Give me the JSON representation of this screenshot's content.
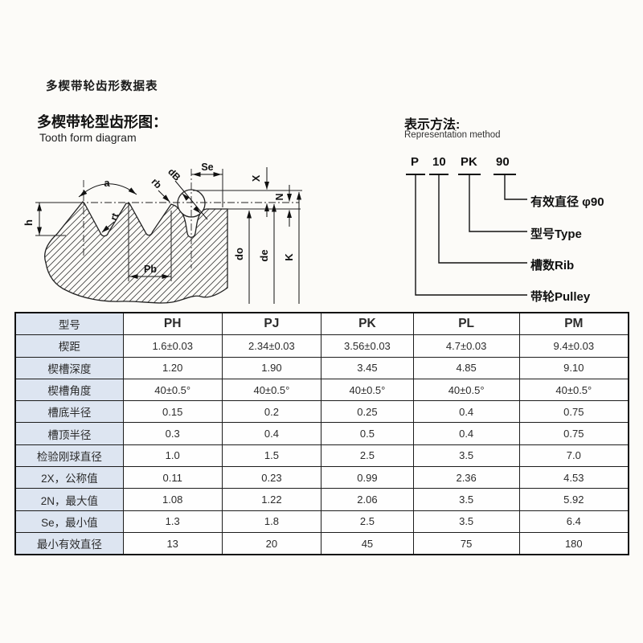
{
  "page_title": "多楔带轮齿形数据表",
  "diagram": {
    "title": "多楔带轮型齿形图：",
    "subtitle": "Tooth form diagram",
    "labels": {
      "a": "a",
      "h": "h",
      "rt": "rt",
      "rb": "rb",
      "db": "dB",
      "se": "Se",
      "x": "X",
      "n": "N",
      "pb": "Pb",
      "do_": "do",
      "de": "de",
      "k": "K"
    }
  },
  "representation": {
    "title": "表示方法:",
    "subtitle": "Representation method",
    "code_parts": [
      "P",
      "10",
      "PK",
      "90"
    ],
    "callouts": [
      {
        "for": "90",
        "label": "有效直径 φ90"
      },
      {
        "for": "PK",
        "label": "型号Type"
      },
      {
        "for": "10",
        "label": "槽数Rib"
      },
      {
        "for": "P",
        "label": "带轮Pulley"
      }
    ]
  },
  "table": {
    "columns": [
      "型号",
      "PH",
      "PJ",
      "PK",
      "PL",
      "PM"
    ],
    "rows": [
      {
        "label": "楔距",
        "values": [
          "1.6±0.03",
          "2.34±0.03",
          "3.56±0.03",
          "4.7±0.03",
          "9.4±0.03"
        ]
      },
      {
        "label": "楔槽深度",
        "values": [
          "1.20",
          "1.90",
          "3.45",
          "4.85",
          "9.10"
        ]
      },
      {
        "label": "楔槽角度",
        "values": [
          "40±0.5°",
          "40±0.5°",
          "40±0.5°",
          "40±0.5°",
          "40±0.5°"
        ]
      },
      {
        "label": "槽底半径",
        "values": [
          "0.15",
          "0.2",
          "0.25",
          "0.4",
          "0.75"
        ]
      },
      {
        "label": "槽顶半径",
        "values": [
          "0.3",
          "0.4",
          "0.5",
          "0.4",
          "0.75"
        ]
      },
      {
        "label": "检验刚球直径",
        "values": [
          "1.0",
          "1.5",
          "2.5",
          "3.5",
          "7.0"
        ]
      },
      {
        "label": "2X，公称值",
        "values": [
          "0.11",
          "0.23",
          "0.99",
          "2.36",
          "4.53"
        ]
      },
      {
        "label": "2N，最大值",
        "values": [
          "1.08",
          "1.22",
          "2.06",
          "3.5",
          "5.92"
        ]
      },
      {
        "label": "Se，最小值",
        "values": [
          "1.3",
          "1.8",
          "2.5",
          "3.5",
          "6.4"
        ]
      },
      {
        "label": "最小有效直径",
        "values": [
          "13",
          "20",
          "45",
          "75",
          "180"
        ]
      }
    ]
  },
  "colors": {
    "label_col_bg": "#dde5f1",
    "table_border": "#1c1c1c",
    "line_color": "#222222",
    "text_color": "#2e2e2e"
  }
}
